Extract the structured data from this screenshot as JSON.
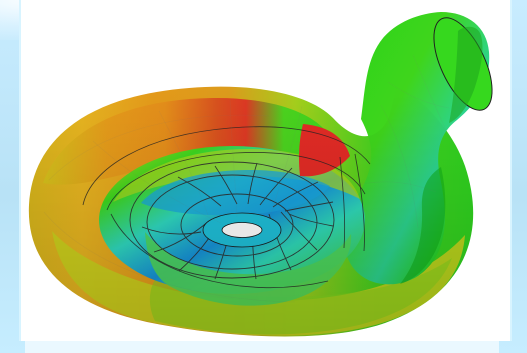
{
  "scene": {
    "subject": "pump-volute-simulation",
    "palette": {
      "red": "#e1322c",
      "orange": "#e98f1d",
      "yellow": "#d8ce18",
      "green": "#33cf1e",
      "cyan": "#27d6c2",
      "blue": "#198ed8",
      "background": "#eaf8ff"
    }
  }
}
